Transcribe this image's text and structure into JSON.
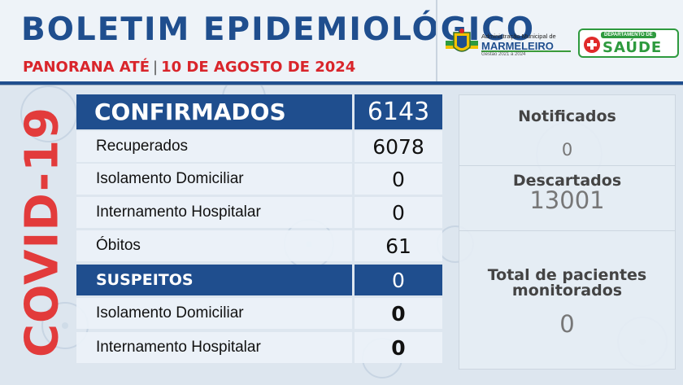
{
  "header": {
    "title": "BOLETIM EPIDEMIOLÓGICO",
    "subtitle_left": "PANORANA ATÉ",
    "subtitle_right": "10 DE AGOSTO DE 2024"
  },
  "logos": {
    "municipality": {
      "line1": "Administração Municipal de",
      "line2": "MARMELEIRO",
      "line3": "Gestão 2021 a 2024"
    },
    "health": {
      "department": "DEPARTAMENTO DE",
      "name": "SAÚDE"
    }
  },
  "side_label": "COVID-19",
  "table": {
    "confirmados": {
      "label": "CONFIRMADOS",
      "value": "6143"
    },
    "recuperados": {
      "label": "Recuperados",
      "value": "6078"
    },
    "isolamento_confirmados": {
      "label": "Isolamento Domiciliar",
      "value": "0"
    },
    "internamento_confirmados": {
      "label": "Internamento Hospitalar",
      "value": "0"
    },
    "obitos": {
      "label": "Óbitos",
      "value": "61"
    },
    "suspeitos": {
      "label": "SUSPEITOS",
      "value": "0"
    },
    "isolamento_suspeitos": {
      "label": "Isolamento Domiciliar",
      "value": "0"
    },
    "internamento_suspeitos": {
      "label": "Internamento Hospitalar",
      "value": "0"
    }
  },
  "right_panel": {
    "notificados": {
      "label": "Notificados",
      "value": "0"
    },
    "descartados": {
      "label": "Descartados",
      "value": "13001"
    },
    "monitorados": {
      "label_line1": "Total de pacientes",
      "label_line2": "monitorados",
      "value": "0"
    }
  },
  "colors": {
    "primary_blue": "#1f4e8e",
    "accent_red": "#d9252b",
    "health_green": "#2e9a3e"
  }
}
